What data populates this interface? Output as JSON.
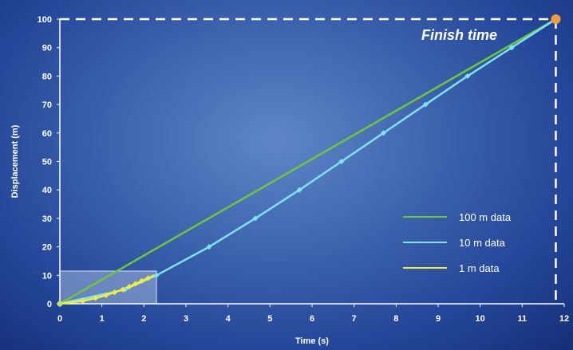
{
  "chart_data": {
    "type": "line",
    "xlabel": "Time (s)",
    "ylabel": "Displacement (m)",
    "xlim": [
      0,
      12
    ],
    "ylim": [
      0,
      100
    ],
    "xticks": [
      0,
      1,
      2,
      3,
      4,
      5,
      6,
      7,
      8,
      9,
      10,
      11,
      12
    ],
    "yticks": [
      0,
      10,
      20,
      30,
      40,
      50,
      60,
      70,
      80,
      90,
      100
    ],
    "grid": false,
    "legend_position": "bottom-right",
    "series": [
      {
        "name": "100 m data",
        "color": "#6cc83a",
        "markers": false,
        "points": [
          [
            0,
            0
          ],
          [
            11.8,
            100
          ]
        ]
      },
      {
        "name": "10 m data",
        "color": "#7de3f5",
        "markers": true,
        "points": [
          [
            0,
            0
          ],
          [
            1.55,
            5
          ],
          [
            2.3,
            10
          ],
          [
            3.55,
            20
          ],
          [
            4.65,
            30
          ],
          [
            5.7,
            40
          ],
          [
            6.7,
            50
          ],
          [
            7.7,
            60
          ],
          [
            8.7,
            70
          ],
          [
            9.7,
            80
          ],
          [
            10.75,
            90
          ],
          [
            11.8,
            100
          ]
        ]
      },
      {
        "name": "1 m data",
        "color": "#f2ee38",
        "markers": true,
        "points": [
          [
            0,
            0
          ],
          [
            0.55,
            1
          ],
          [
            0.85,
            2
          ],
          [
            1.1,
            3
          ],
          [
            1.3,
            4
          ],
          [
            1.5,
            5
          ],
          [
            1.65,
            6
          ],
          [
            1.8,
            7
          ],
          [
            1.95,
            8
          ],
          [
            2.1,
            9
          ],
          [
            2.25,
            10
          ]
        ]
      }
    ],
    "finish_point": {
      "x": 11.8,
      "y": 100,
      "color": "#f39a3c"
    },
    "annotation": "Finish time",
    "zoom_region": {
      "x": [
        0,
        2.3
      ],
      "y": [
        0,
        11.5
      ]
    }
  }
}
